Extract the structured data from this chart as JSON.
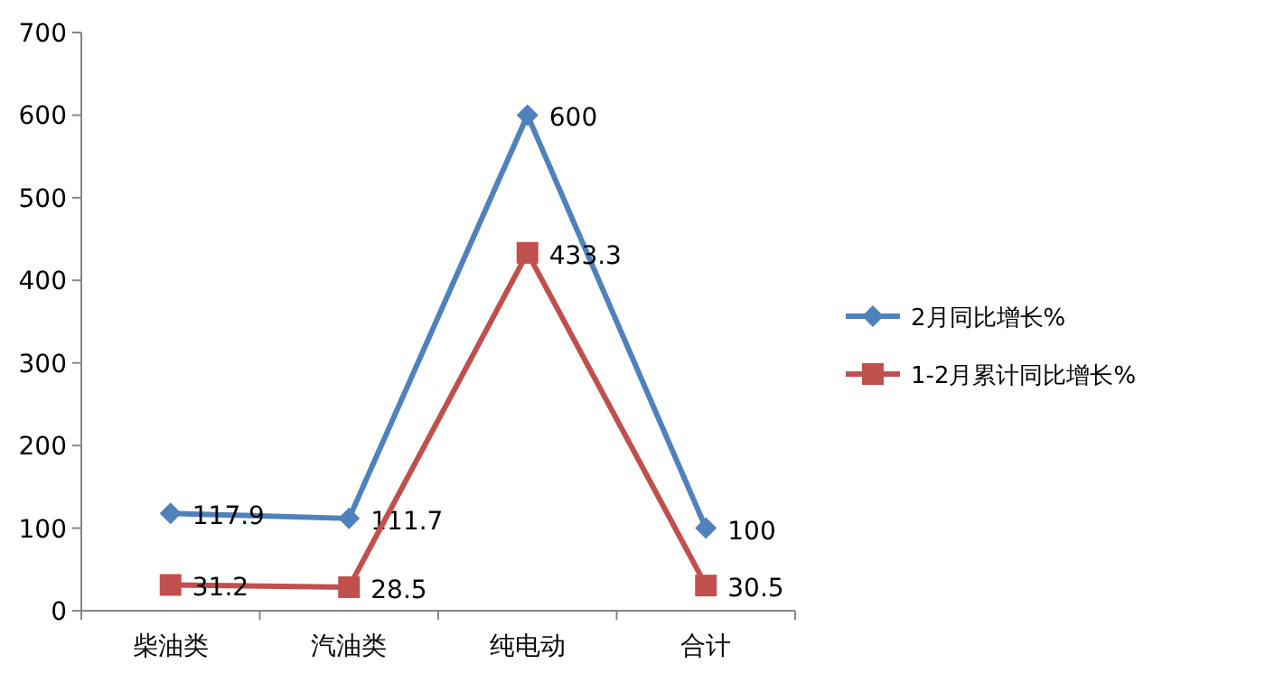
{
  "chart_data": {
    "type": "line",
    "categories": [
      "柴油类",
      "汽油类",
      "纯电动",
      "合计"
    ],
    "series": [
      {
        "name": "2月同比增长%",
        "color": "#4f81bd",
        "marker": "diamond",
        "values": [
          117.9,
          111.7,
          600,
          100
        ]
      },
      {
        "name": "1-2月累计同比增长%",
        "color": "#c0504d",
        "marker": "square",
        "values": [
          31.2,
          28.5,
          433.3,
          30.5
        ]
      }
    ],
    "ylim": [
      0,
      700
    ],
    "yticks": [
      0,
      100,
      200,
      300,
      400,
      500,
      600,
      700
    ],
    "grid": false,
    "legend": "right",
    "data_labels": true
  }
}
